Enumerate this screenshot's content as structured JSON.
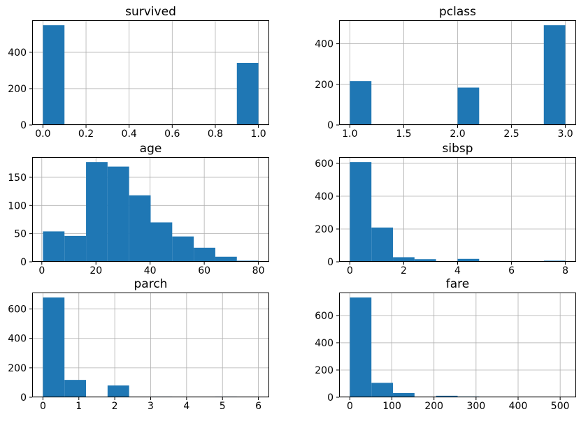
{
  "figure": {
    "rows": 3,
    "cols": 2,
    "background": "#ffffff",
    "grid": true,
    "legend": "none"
  },
  "style": {
    "bar_color": "#1f77b4",
    "grid_color": "#b0b0b0",
    "axis_color": "#000000",
    "text_color": "#000000"
  },
  "chart_data": [
    {
      "type": "bar",
      "title": "survived",
      "xlabel": "",
      "ylabel": "",
      "bin_edges": [
        0.0,
        0.1,
        0.2,
        0.3,
        0.4,
        0.5,
        0.6,
        0.7,
        0.8,
        0.9,
        1.0
      ],
      "counts": [
        549,
        0,
        0,
        0,
        0,
        0,
        0,
        0,
        0,
        342
      ],
      "xlim": [
        -0.05,
        1.05
      ],
      "ylim": [
        0,
        576.45
      ],
      "xticks": [
        0.0,
        0.2,
        0.4,
        0.6,
        0.8,
        1.0
      ],
      "xtick_labels": [
        "0.0",
        "0.2",
        "0.4",
        "0.6",
        "0.8",
        "1.0"
      ],
      "yticks": [
        0,
        200,
        400
      ],
      "ytick_labels": [
        "0",
        "200",
        "400"
      ]
    },
    {
      "type": "bar",
      "title": "pclass",
      "xlabel": "",
      "ylabel": "",
      "bin_edges": [
        1.0,
        1.2,
        1.4,
        1.6,
        1.8,
        2.0,
        2.2,
        2.4,
        2.6,
        2.8,
        3.0
      ],
      "counts": [
        216,
        0,
        0,
        0,
        0,
        184,
        0,
        0,
        0,
        491
      ],
      "xlim": [
        0.9,
        3.1
      ],
      "ylim": [
        0,
        515.55
      ],
      "xticks": [
        1.0,
        1.5,
        2.0,
        2.5,
        3.0
      ],
      "xtick_labels": [
        "1.0",
        "1.5",
        "2.0",
        "2.5",
        "3.0"
      ],
      "yticks": [
        0,
        200,
        400
      ],
      "ytick_labels": [
        "0",
        "200",
        "400"
      ]
    },
    {
      "type": "bar",
      "title": "age",
      "xlabel": "",
      "ylabel": "",
      "bin_edges": [
        0.42,
        8.38,
        16.34,
        24.29,
        32.25,
        40.21,
        48.17,
        56.13,
        64.08,
        72.04,
        80.0
      ],
      "counts": [
        54,
        46,
        177,
        169,
        118,
        70,
        45,
        25,
        9,
        2
      ],
      "xlim": [
        -3.56,
        83.98
      ],
      "ylim": [
        0,
        185.85
      ],
      "xticks": [
        0,
        20,
        40,
        60,
        80
      ],
      "xtick_labels": [
        "0",
        "20",
        "40",
        "60",
        "80"
      ],
      "yticks": [
        0,
        50,
        100,
        150
      ],
      "ytick_labels": [
        "0",
        "50",
        "100",
        "150"
      ]
    },
    {
      "type": "bar",
      "title": "sibsp",
      "xlabel": "",
      "ylabel": "",
      "bin_edges": [
        0.0,
        0.8,
        1.6,
        2.4,
        3.2,
        4.0,
        4.8,
        5.6,
        6.4,
        7.2,
        8.0
      ],
      "counts": [
        608,
        209,
        28,
        16,
        0,
        18,
        5,
        0,
        0,
        7
      ],
      "xlim": [
        -0.4,
        8.4
      ],
      "ylim": [
        0,
        638.4
      ],
      "xticks": [
        0,
        2,
        4,
        6,
        8
      ],
      "xtick_labels": [
        "0",
        "2",
        "4",
        "6",
        "8"
      ],
      "yticks": [
        0,
        200,
        400,
        600
      ],
      "ytick_labels": [
        "0",
        "200",
        "400",
        "600"
      ]
    },
    {
      "type": "bar",
      "title": "parch",
      "xlabel": "",
      "ylabel": "",
      "bin_edges": [
        0.0,
        0.6,
        1.2,
        1.8,
        2.4,
        3.0,
        3.6,
        4.2,
        4.8,
        5.4,
        6.0
      ],
      "counts": [
        678,
        118,
        0,
        80,
        0,
        5,
        4,
        0,
        5,
        1
      ],
      "xlim": [
        -0.3,
        6.3
      ],
      "ylim": [
        0,
        711.9
      ],
      "xticks": [
        0,
        1,
        2,
        3,
        4,
        5,
        6
      ],
      "xtick_labels": [
        "0",
        "1",
        "2",
        "3",
        "4",
        "5",
        "6"
      ],
      "yticks": [
        0,
        200,
        400,
        600
      ],
      "ytick_labels": [
        "0",
        "200",
        "400",
        "600"
      ]
    },
    {
      "type": "bar",
      "title": "fare",
      "xlabel": "",
      "ylabel": "",
      "bin_edges": [
        0.0,
        51.23,
        102.47,
        153.7,
        204.93,
        256.16,
        307.4,
        358.63,
        409.86,
        461.1,
        512.33
      ],
      "counts": [
        732,
        106,
        31,
        2,
        11,
        6,
        0,
        0,
        0,
        3
      ],
      "xlim": [
        -25.62,
        537.95
      ],
      "ylim": [
        0,
        768.6
      ],
      "xticks": [
        0,
        100,
        200,
        300,
        400,
        500
      ],
      "xtick_labels": [
        "0",
        "100",
        "200",
        "300",
        "400",
        "500"
      ],
      "yticks": [
        0,
        200,
        400,
        600
      ],
      "ytick_labels": [
        "0",
        "200",
        "400",
        "600"
      ]
    }
  ]
}
